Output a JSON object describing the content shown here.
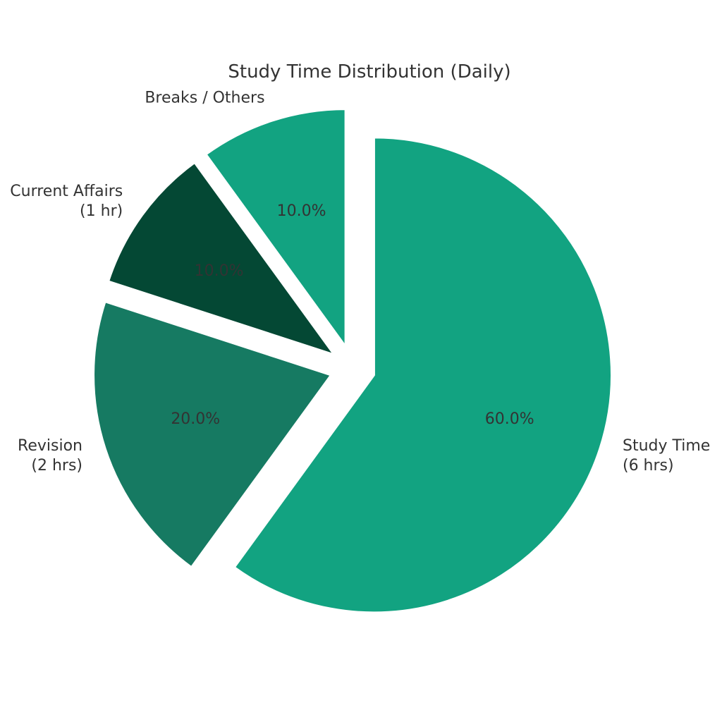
{
  "chart_data": {
    "type": "pie",
    "title": "Study Time Distribution (Daily)",
    "slices": [
      {
        "label": "Study Time",
        "label_line2": "(6 hrs)",
        "value": 6,
        "pct_label": "60.0%",
        "color": "#12a381",
        "exploded": true
      },
      {
        "label": "Revision",
        "label_line2": "(2 hrs)",
        "value": 2,
        "pct_label": "20.0%",
        "color": "#167a62",
        "exploded": true
      },
      {
        "label": "Current Affairs",
        "label_line2": "(1 hr)",
        "value": 1,
        "pct_label": "10.0%",
        "color": "#044834",
        "exploded": true
      },
      {
        "label": "Breaks / Others",
        "label_line2": "",
        "value": 1,
        "pct_label": "10.0%",
        "color": "#12a381",
        "exploded": true
      }
    ],
    "start_angle_deg": 90,
    "direction": "clockwise"
  }
}
